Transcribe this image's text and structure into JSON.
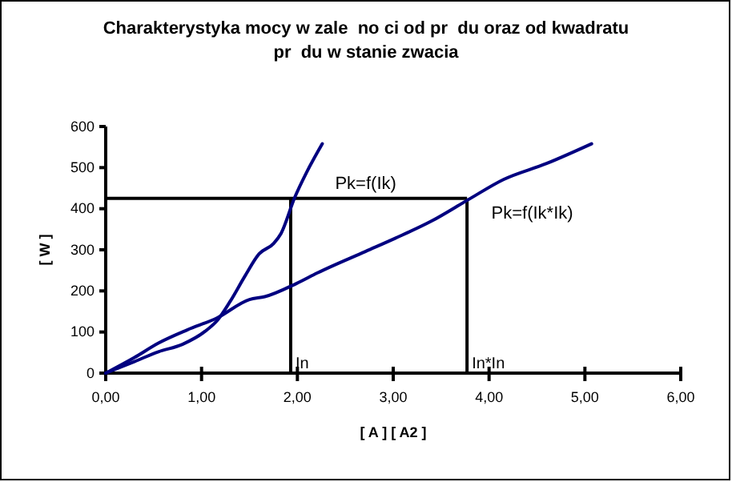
{
  "chart_data": {
    "type": "line",
    "title": "Charakterystyka mocy w zale  no ci od pr  du oraz od kwadratu pr  du w stanie zwacia",
    "xlabel": "[ A ] [ A2 ]",
    "ylabel": "[ W ]",
    "xlim": [
      0,
      6
    ],
    "ylim": [
      0,
      600
    ],
    "xticks": [
      {
        "value": 0,
        "label": "0,00"
      },
      {
        "value": 1,
        "label": "1,00"
      },
      {
        "value": 2,
        "label": "2,00"
      },
      {
        "value": 3,
        "label": "3,00"
      },
      {
        "value": 4,
        "label": "4,00"
      },
      {
        "value": 5,
        "label": "5,00"
      },
      {
        "value": 6,
        "label": "6,00"
      }
    ],
    "yticks": [
      0,
      100,
      200,
      300,
      400,
      500,
      600
    ],
    "grid": false,
    "marker": "none",
    "line_style": "solid",
    "series": [
      {
        "name": "Pk=f(Ik)",
        "color": "#000080",
        "x": [
          0,
          0.3,
          0.55,
          0.8,
          1.05,
          1.16,
          1.3,
          1.45,
          1.6,
          1.75,
          1.83,
          1.97,
          2.1,
          2.26
        ],
        "values": [
          0,
          28,
          52,
          70,
          104,
          127,
          175,
          235,
          290,
          315,
          340,
          426,
          490,
          558
        ]
      },
      {
        "name": "Pk=f(Ik*Ik)",
        "color": "#000080",
        "x": [
          0,
          0.3,
          0.55,
          0.85,
          1.16,
          1.5,
          1.66,
          1.99,
          2.21,
          2.71,
          3.02,
          3.4,
          3.79,
          4.15,
          4.6,
          5.07
        ],
        "values": [
          0,
          38,
          73,
          105,
          134,
          179,
          186,
          218,
          244,
          296,
          328,
          370,
          423,
          471,
          510,
          558
        ]
      }
    ],
    "ref_lines": [
      {
        "axis": "y",
        "value": 425,
        "color": "#000000"
      },
      {
        "axis": "x",
        "value": 1.93,
        "label": "In",
        "color": "#000000"
      },
      {
        "axis": "x",
        "value": 3.77,
        "label": "In*In",
        "color": "#000000"
      }
    ]
  }
}
